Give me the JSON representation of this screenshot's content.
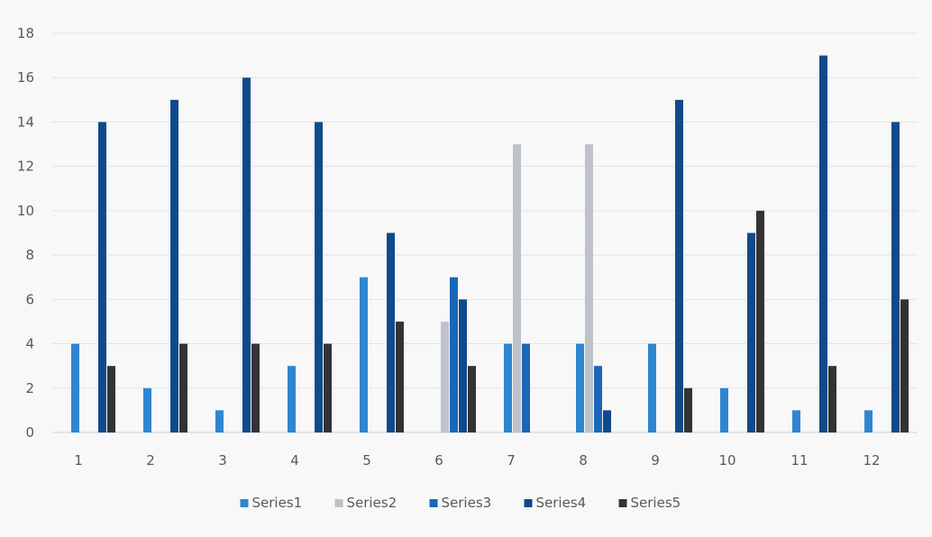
{
  "chart_data": {
    "type": "bar",
    "title": "",
    "xlabel": "",
    "ylabel": "",
    "categories": [
      "1",
      "2",
      "3",
      "4",
      "5",
      "6",
      "7",
      "8",
      "9",
      "10",
      "11",
      "12"
    ],
    "ylim": [
      0,
      18
    ],
    "yticks": [
      0,
      2,
      4,
      6,
      8,
      10,
      12,
      14,
      16,
      18
    ],
    "grid": true,
    "legend_position": "bottom",
    "series": [
      {
        "name": "Series1",
        "color": "#2E86D0",
        "values": [
          4,
          2,
          1,
          3,
          7,
          0,
          4,
          4,
          4,
          2,
          1,
          1
        ]
      },
      {
        "name": "Series2",
        "color": "#BDC3C9",
        "values": [
          0,
          0,
          0,
          0,
          0,
          5,
          13,
          13,
          0,
          0,
          0,
          0
        ]
      },
      {
        "name": "Series3",
        "color": "#1A66B8",
        "values": [
          0,
          0,
          0,
          0,
          0,
          7,
          4,
          3,
          0,
          0,
          0,
          0
        ]
      },
      {
        "name": "Series4",
        "color": "#0F4A8A",
        "values": [
          14,
          15,
          16,
          14,
          9,
          6,
          0,
          1,
          15,
          9,
          17,
          14
        ]
      },
      {
        "name": "Series5",
        "color": "#333333",
        "values": [
          3,
          4,
          4,
          4,
          5,
          3,
          0,
          0,
          2,
          10,
          3,
          6
        ]
      }
    ]
  }
}
